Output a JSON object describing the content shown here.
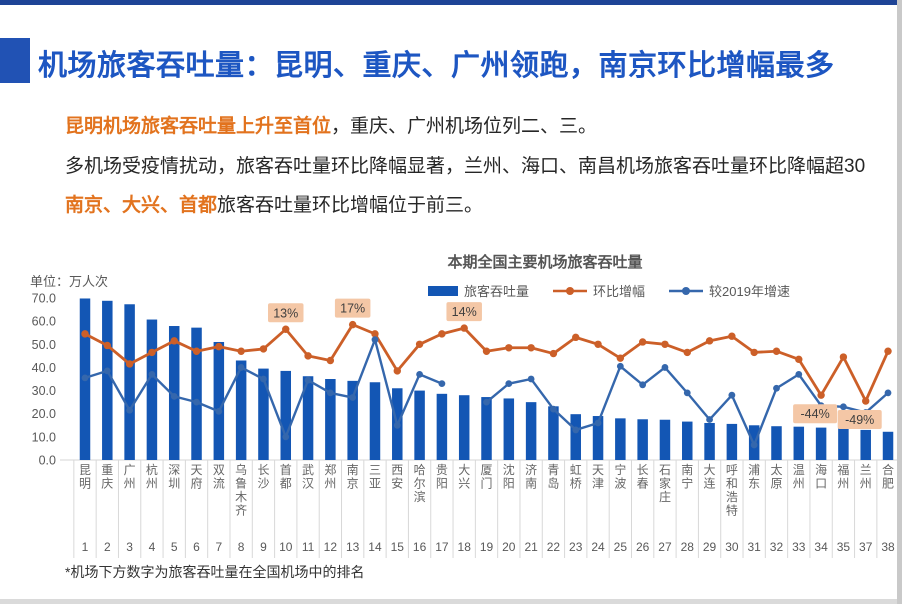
{
  "page": {
    "title": "机场旅客吞吐量：昆明、重庆、广州领跑，南京环比增幅最多",
    "paragraphs": [
      {
        "segments": [
          {
            "text": "昆明机场旅客吞吐量上升至首位",
            "highlight": true
          },
          {
            "text": "，重庆、广州机场位列二、三。",
            "highlight": false
          }
        ]
      },
      {
        "segments": [
          {
            "text": "多机场受疫情扰动，旅客吞吐量环比降幅显著，兰州、海口、南昌机场旅客吞吐量环比降幅超30",
            "highlight": false
          }
        ]
      },
      {
        "segments": [
          {
            "text": "南京、大兴、首都",
            "highlight": true
          },
          {
            "text": "旅客吞吐量环比增幅位于前三。",
            "highlight": false
          }
        ]
      }
    ],
    "footnote": "*机场下方数字为旅客吞吐量在全国机场中的排名",
    "accent_color": "#1d56c2",
    "highlight_color": "#e2731e"
  },
  "chart_data": {
    "type": "bar",
    "title": "本期全国主要机场旅客吞吐量",
    "unit_label": "单位：万人次",
    "categories": [
      "昆明",
      "重庆",
      "广州",
      "杭州",
      "深圳",
      "天府",
      "双流",
      "乌鲁木齐",
      "长沙",
      "首都",
      "武汉",
      "郑州",
      "南京",
      "三亚",
      "西安",
      "哈尔滨",
      "贵阳",
      "大兴",
      "厦门",
      "沈阳",
      "济南",
      "青岛",
      "虹桥",
      "天津",
      "宁波",
      "长春",
      "石家庄",
      "南宁",
      "大连",
      "呼和浩特",
      "浦东",
      "太原",
      "温州",
      "海口",
      "福州",
      "兰州",
      "合肥"
    ],
    "ranks": [
      1,
      2,
      3,
      4,
      5,
      6,
      7,
      8,
      9,
      10,
      11,
      12,
      13,
      14,
      15,
      16,
      17,
      18,
      19,
      20,
      21,
      22,
      23,
      24,
      25,
      26,
      27,
      28,
      29,
      30,
      31,
      32,
      33,
      34,
      35,
      37,
      38
    ],
    "series": [
      {
        "name": "旅客吞吐量",
        "type": "bar",
        "axis": "primary",
        "color": "#1356b4",
        "values": [
          69.8,
          68.8,
          67.3,
          60.7,
          57.9,
          57.2,
          51.0,
          43.0,
          39.5,
          38.5,
          36.2,
          35.0,
          34.2,
          33.6,
          31.0,
          30.0,
          28.6,
          28.0,
          27.2,
          26.6,
          25.0,
          23.2,
          19.8,
          19.0,
          18.0,
          17.6,
          17.4,
          16.6,
          16.0,
          15.6,
          15.0,
          14.6,
          14.4,
          14.0,
          13.6,
          13.0,
          12.2
        ]
      },
      {
        "name": "环比增幅",
        "type": "line",
        "axis": "secondary",
        "color": "#cc5f28",
        "values": [
          9,
          -1,
          -17,
          -7,
          3,
          -6,
          -2,
          -6,
          -4,
          13,
          -10,
          -14,
          17,
          9,
          -23,
          0,
          9,
          14,
          -6,
          -3,
          -3,
          -8,
          6,
          0,
          -12,
          2,
          0,
          -7,
          3,
          7,
          -7,
          -6,
          -13,
          -44,
          -11,
          -49,
          -6
        ]
      },
      {
        "name": "较2019年增速",
        "type": "line",
        "axis": "secondary",
        "color": "#3567ac",
        "values": [
          -29,
          -23,
          -57,
          -26,
          -45,
          -50,
          -58,
          -20,
          -30,
          -80,
          -31,
          -42,
          -46,
          4,
          -70,
          -26,
          -34,
          null,
          -50,
          -34,
          -30,
          -56,
          -74,
          -68,
          -19,
          -35,
          -20,
          -42,
          -65,
          -44,
          -87,
          -38,
          -26,
          -53,
          -54,
          -59,
          -42
        ]
      }
    ],
    "annotations": [
      {
        "index": 9,
        "series": "环比增幅",
        "text": "13%",
        "placement": "above"
      },
      {
        "index": 12,
        "series": "环比增幅",
        "text": "17%",
        "placement": "above"
      },
      {
        "index": 17,
        "series": "环比增幅",
        "text": "14%",
        "placement": "above"
      },
      {
        "index": 33,
        "series": "环比增幅",
        "text": "-44%",
        "placement": "below"
      },
      {
        "index": 35,
        "series": "环比增幅",
        "text": "-49%",
        "placement": "below"
      }
    ],
    "annotation_style": {
      "bg": "#f4c7a6",
      "text_color": "#3f3f3f"
    },
    "primary_axis": {
      "min": 0,
      "max": 70,
      "tick_labels": [
        "0.0",
        "10.0",
        "20.0",
        "30.0",
        "40.0",
        "50.0",
        "60.0",
        "70.0"
      ]
    },
    "secondary_axis": {
      "min": -100,
      "max": 40,
      "unit": "%",
      "hidden": true
    },
    "grid": "none",
    "legend_position": "top-center"
  }
}
